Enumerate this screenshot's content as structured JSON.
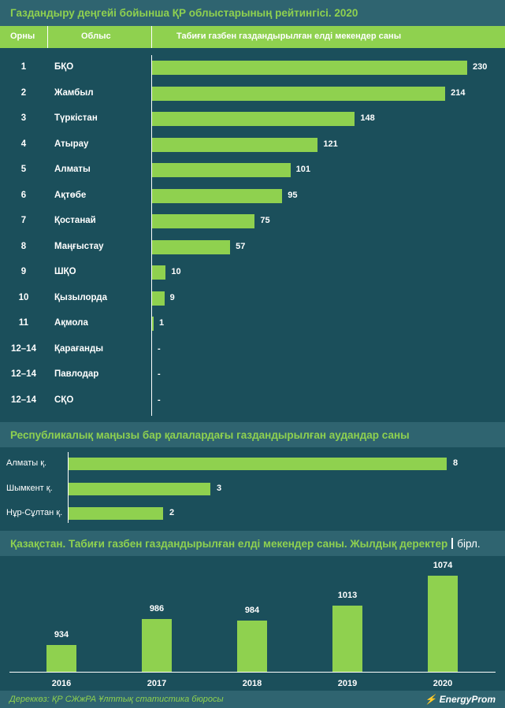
{
  "section1": {
    "title": "Газдандыру деңгейі бойынша ҚР облыстарының рейтингісі. 2020",
    "col_rank": "Орны",
    "col_region": "Облыс",
    "col_value": "Табиғи газбен газдандырылған елді мекендер саны"
  },
  "section2": {
    "title": "Республикалық маңызы бар қалалардағы газдандырылған аудандар саны"
  },
  "section3": {
    "title": "Қазақстан. Табиғи газбен газдандырылған елді мекендер саны. Жылдық деректер",
    "unit": "бірл."
  },
  "footer": {
    "source": "Дереккөз: ҚР СЖжРА Ұлттық статистика бюросы",
    "brand": "EnergyProm"
  },
  "colors": {
    "accent": "#8fd14f",
    "background": "#1b4f5b",
    "band": "#2f6470"
  },
  "chart_data": [
    {
      "type": "bar",
      "orientation": "horizontal",
      "ranks": [
        "1",
        "2",
        "3",
        "4",
        "5",
        "6",
        "7",
        "8",
        "9",
        "10",
        "11",
        "12–14",
        "12–14",
        "12–14"
      ],
      "categories": [
        "БҚО",
        "Жамбыл",
        "Түркістан",
        "Атырау",
        "Алматы",
        "Ақтөбе",
        "Қостанай",
        "Маңғыстау",
        "ШҚО",
        "Қызылорда",
        "Ақмола",
        "Қарағанды",
        "Павлодар",
        "СҚО"
      ],
      "values": [
        230,
        214,
        148,
        121,
        101,
        95,
        75,
        57,
        10,
        9,
        1,
        null,
        null,
        null
      ],
      "labels": [
        "230",
        "214",
        "148",
        "121",
        "101",
        "95",
        "75",
        "57",
        "10",
        "9",
        "1",
        "-",
        "-",
        "-"
      ],
      "xlim": [
        0,
        230
      ]
    },
    {
      "type": "bar",
      "orientation": "horizontal",
      "categories": [
        "Алматы қ.",
        "Шымкент қ.",
        "Нұр-Сұлтан қ."
      ],
      "values": [
        8,
        3,
        2
      ],
      "labels": [
        "8",
        "3",
        "2"
      ],
      "xlim": [
        0,
        8
      ]
    },
    {
      "type": "bar",
      "orientation": "vertical",
      "categories": [
        "2016",
        "2017",
        "2018",
        "2019",
        "2020"
      ],
      "values": [
        934,
        986,
        984,
        1013,
        1074
      ],
      "labels": [
        "934",
        "986",
        "984",
        "1013",
        "1074"
      ]
    }
  ]
}
